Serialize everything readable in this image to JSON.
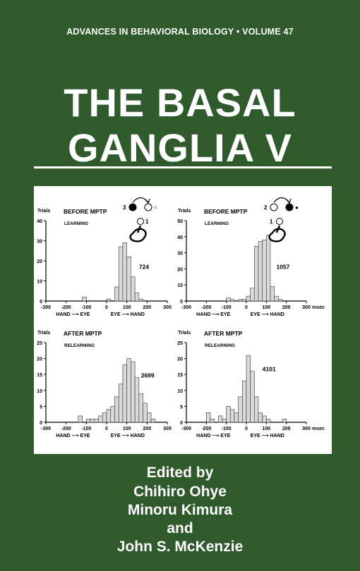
{
  "series_line": "ADVANCES IN BEHAVIORAL BIOLOGY • VOLUME 47",
  "title": {
    "line1": "THE BASAL",
    "line2": "GANGLIA V"
  },
  "credits": {
    "edited_by": "Edited by",
    "editor1": "Chihiro Ohye",
    "editor2": "Minoru Kimura",
    "conjunction": "and",
    "editor3": "John S. McKenzie"
  },
  "colors": {
    "background": "#2f5a2c",
    "text": "#ffffff",
    "panel": "#ffffff",
    "bars": "#d9d9d9"
  },
  "chart_data": [
    {
      "type": "bar",
      "title": "BEFORE MPTP",
      "subtitle": "LEARNING",
      "ylabel": "Trials",
      "xlabel_left": "HAND ⟶ EYE",
      "xlabel_right": "EYE ⟶ HAND",
      "annotation": "724",
      "ylim": [
        0,
        40
      ],
      "yticks": [
        0,
        10,
        20,
        30,
        40
      ],
      "xlim": [
        -300,
        300
      ],
      "xticks": [
        -300,
        -200,
        -100,
        0,
        100,
        200,
        300
      ],
      "bin_width": 20,
      "bins": [
        [
          -120,
          2
        ],
        [
          0,
          1
        ],
        [
          40,
          7
        ],
        [
          60,
          27
        ],
        [
          80,
          29
        ],
        [
          100,
          22
        ],
        [
          120,
          12
        ],
        [
          140,
          4
        ],
        [
          160,
          1
        ]
      ],
      "inset": {
        "order": "3 ● → ○ 2",
        "start": "1",
        "icon": "hand-icon"
      }
    },
    {
      "type": "bar",
      "title": "BEFORE MPTP",
      "subtitle": "LEARNING",
      "ylabel": "Trials",
      "xlabel_left": "HAND ⟶ EYE",
      "xlabel_right": "EYE ⟶ HAND",
      "xunit": "msec",
      "annotation": "1057",
      "ylim": [
        0,
        50
      ],
      "yticks": [
        0,
        10,
        20,
        30,
        40,
        50
      ],
      "xlim": [
        -300,
        300
      ],
      "xticks": [
        -300,
        -200,
        -100,
        0,
        100,
        200,
        300
      ],
      "bin_width": 20,
      "bins": [
        [
          -100,
          2
        ],
        [
          -80,
          1
        ],
        [
          -40,
          1
        ],
        [
          -20,
          1
        ],
        [
          0,
          3
        ],
        [
          20,
          8
        ],
        [
          40,
          34
        ],
        [
          60,
          37
        ],
        [
          80,
          38
        ],
        [
          100,
          41
        ],
        [
          120,
          9
        ],
        [
          140,
          3
        ],
        [
          160,
          1
        ]
      ],
      "inset": {
        "order": "2 ○ → ● 3",
        "start": "1",
        "icon": "hand-icon"
      }
    },
    {
      "type": "bar",
      "title": "AFTER MPTP",
      "subtitle": "RELEARNING",
      "ylabel": "Trials",
      "xlabel_left": "HAND ⟶ EYE",
      "xlabel_right": "EYE ⟶ HAND",
      "annotation": "2699",
      "ylim": [
        0,
        25
      ],
      "yticks": [
        0,
        5,
        10,
        15,
        20,
        25
      ],
      "xlim": [
        -300,
        300
      ],
      "xticks": [
        -300,
        -200,
        -100,
        0,
        100,
        200,
        300
      ],
      "bin_width": 20,
      "bins": [
        [
          -140,
          2
        ],
        [
          -100,
          1
        ],
        [
          -80,
          1
        ],
        [
          -60,
          1
        ],
        [
          -40,
          2
        ],
        [
          -20,
          3
        ],
        [
          0,
          4
        ],
        [
          20,
          5
        ],
        [
          40,
          8
        ],
        [
          60,
          12
        ],
        [
          80,
          18
        ],
        [
          100,
          20
        ],
        [
          120,
          19
        ],
        [
          140,
          14
        ],
        [
          160,
          9
        ],
        [
          180,
          6
        ],
        [
          200,
          3
        ],
        [
          220,
          1
        ]
      ]
    },
    {
      "type": "bar",
      "title": "AFTER MPTP",
      "subtitle": "RELEARNING",
      "ylabel": "Trials",
      "xlabel_left": "HAND ⟶ EYE",
      "xlabel_right": "EYE ⟶ HAND",
      "xunit": "msec",
      "annotation": "4101",
      "ylim": [
        0,
        25
      ],
      "yticks": [
        0,
        5,
        10,
        15,
        20,
        25
      ],
      "xlim": [
        -300,
        300
      ],
      "xticks": [
        -300,
        -200,
        -100,
        0,
        100,
        200,
        300
      ],
      "bin_width": 20,
      "bins": [
        [
          -200,
          3
        ],
        [
          -180,
          1
        ],
        [
          -140,
          2
        ],
        [
          -120,
          1
        ],
        [
          -100,
          5
        ],
        [
          -80,
          4
        ],
        [
          -60,
          3
        ],
        [
          -40,
          8
        ],
        [
          -20,
          13
        ],
        [
          0,
          21
        ],
        [
          20,
          16
        ],
        [
          40,
          8
        ],
        [
          60,
          3
        ],
        [
          80,
          2
        ],
        [
          100,
          1
        ],
        [
          180,
          1
        ]
      ]
    }
  ]
}
